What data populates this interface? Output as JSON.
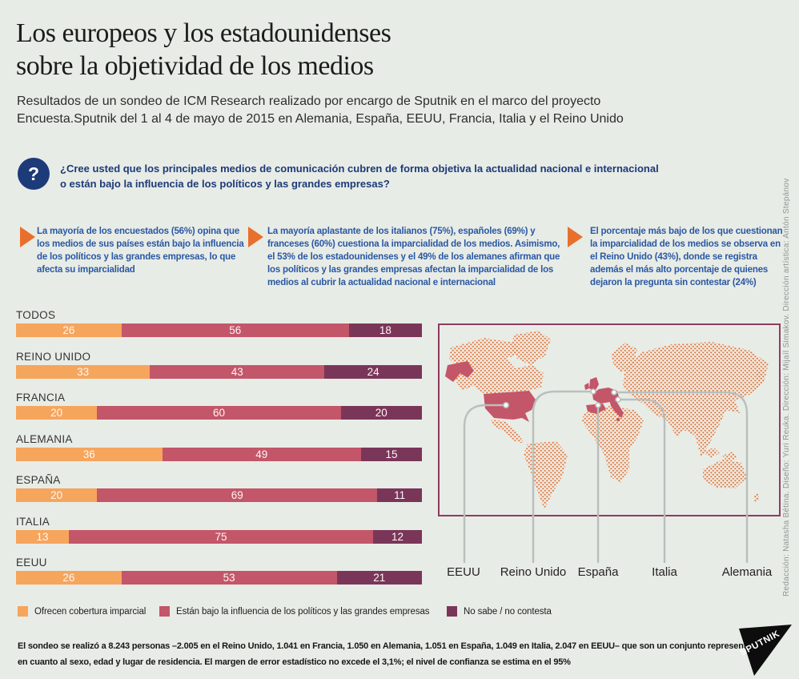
{
  "header": {
    "title_line1": "Los europeos y los estadounidenses",
    "title_line2": "sobre la objetividad de los medios",
    "subtitle": "Resultados de un sondeo de ICM Research realizado por encargo de Sputnik en el marco del proyecto Encuesta.Sputnik del 1 al 4 de mayo de 2015 en Alemania, España, EEUU, Francia, Italia y el Reino Unido"
  },
  "question": {
    "mark": "?",
    "text": "¿Cree usted que los principales medios de comunicación cubren de forma objetiva la actualidad nacional e internacional o están bajo la influencia de los políticos y las grandes empresas?"
  },
  "highlights": [
    "La mayoría de los encuestados (56%) opina que los medios de sus países están bajo la influencia de los políticos y las grandes empresas, lo que afecta su imparcialidad",
    "La mayoría aplastante de los italianos (75%), españoles (69%) y franceses (60%) cuestiona la imparcialidad de los medios. Asimismo, el 53% de los estadounidenses y el 49% de los alemanes afirman que los políticos y las grandes empresas afectan la imparcialidad de los medios al cubrir la actualidad nacional e internacional",
    "El porcentaje más bajo de los que cuestionan la imparcialidad de los medios se observa en el Reino Unido (43%), donde se registra además el más alto porcentaje de quienes dejaron la pregunta sin contestar (24%)"
  ],
  "chart_data": {
    "type": "bar",
    "stacked": true,
    "orientation": "horizontal",
    "grid": false,
    "legend_position": "bottom",
    "xlim": [
      0,
      100
    ],
    "unit": "%",
    "categories": [
      "TODOS",
      "REINO UNIDO",
      "FRANCIA",
      "ALEMANIA",
      "ESPAÑA",
      "ITALIA",
      "EEUU"
    ],
    "series": [
      {
        "name": "Ofrecen cobertura imparcial",
        "color": "#f6a55c",
        "values": [
          26,
          33,
          20,
          36,
          20,
          13,
          26
        ]
      },
      {
        "name": "Están bajo la influencia de los políticos y las grandes empresas",
        "color": "#c35669",
        "values": [
          56,
          43,
          60,
          49,
          69,
          75,
          53
        ]
      },
      {
        "name": "No sabe / no contesta",
        "color": "#7a3659",
        "values": [
          18,
          24,
          20,
          15,
          11,
          12,
          21
        ]
      }
    ]
  },
  "map": {
    "labels": [
      "EEUU",
      "Reino Unido",
      "España",
      "Italia",
      "Alemania"
    ],
    "dot_color": "#e6763b",
    "highlight_color": "#c35669",
    "border_color": "#8e3b60",
    "callout_color": "#b9bfbc"
  },
  "footer": {
    "text": "El sondeo se realizó a 8.243 personas –2.005 en el Reino Unido, 1.041 en Francia, 1.050 en Alemania, 1.051 en España, 1.049 en Italia, 2.047 en EEUU– que son un conjunto representativo en cuanto al sexo, edad y lugar de residencia. El margen de error estadístico no excede el 3,1%; el nivel de confianza se estima en el 95%"
  },
  "credits": {
    "vertical_text": "Redacción: Natasha Bétina. Diseño: Yuri Reuka. Dirección: Mijaíl Simakov. Dirección artística: Antón Stepánov",
    "logo_text": "SPUTNIK"
  },
  "colors": {
    "background": "#e8ece6",
    "navy": "#1d3a79",
    "bullet_blue": "#2a58a3",
    "arrow_orange": "#e8702d",
    "bar_orange": "#f6a55c",
    "bar_rose": "#c35669",
    "bar_plum": "#7a3659",
    "map_dot": "#e6763b",
    "map_border": "#8e3b60",
    "callout_gray": "#b9bfbc",
    "credits_gray": "#8d9793",
    "logo_black": "#0d0d0d"
  }
}
